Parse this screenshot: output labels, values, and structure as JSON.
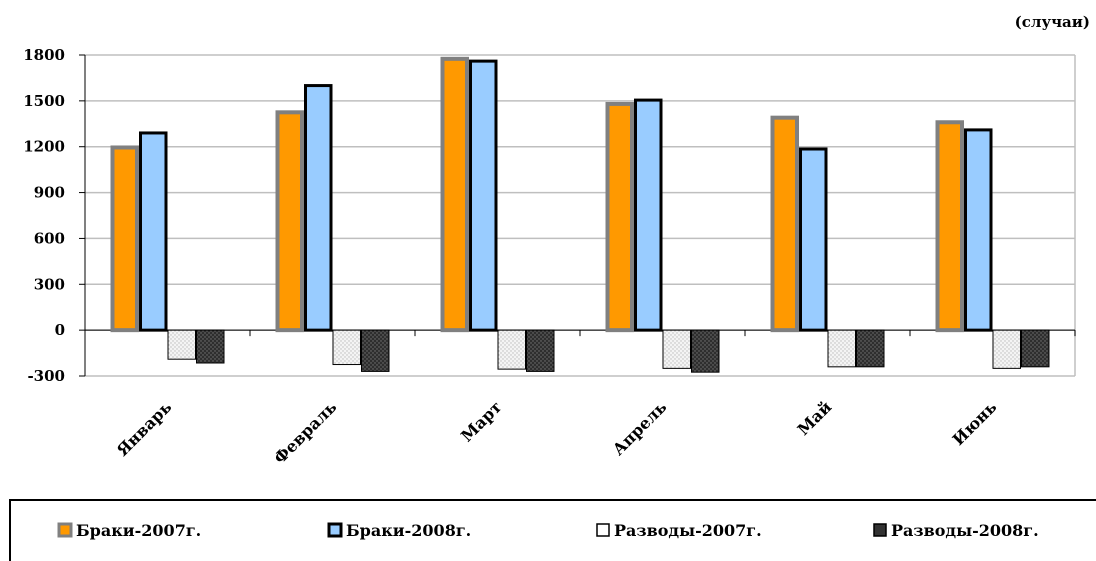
{
  "chart_data": {
    "type": "bar",
    "unit_label": "(случаи)",
    "categories": [
      "Январь",
      "Февраль",
      "Март",
      "Апрель",
      "Май",
      "Июнь"
    ],
    "series": [
      {
        "name": "Браки-2007г.",
        "values": [
          1195,
          1425,
          1775,
          1480,
          1390,
          1360
        ]
      },
      {
        "name": "Браки-2008г.",
        "values": [
          1290,
          1600,
          1760,
          1505,
          1185,
          1310
        ]
      },
      {
        "name": "Разводы-2007г.",
        "values": [
          -190,
          -225,
          -255,
          -250,
          -240,
          -250
        ]
      },
      {
        "name": "Разводы-2008г.",
        "values": [
          -215,
          -270,
          -270,
          -275,
          -240,
          -240
        ]
      }
    ],
    "y_ticks": [
      "1800",
      "1500",
      "1200",
      "900",
      "600",
      "300",
      "0",
      "-300"
    ],
    "ylim": [
      -300,
      1800
    ],
    "grid": true,
    "legend_position": "bottom",
    "colors": {
      "marriages_2007_fill": "#FF9900",
      "marriages_2007_stroke": "#808080",
      "marriages_2008_fill": "#99CCFF",
      "marriages_2008_stroke": "#000000",
      "divorces_2007_fill": "#F2F2F2",
      "divorces_2007_stroke": "#000000",
      "divorces_2008_fill": "#333333",
      "divorces_2008_stroke": "#000000"
    }
  }
}
